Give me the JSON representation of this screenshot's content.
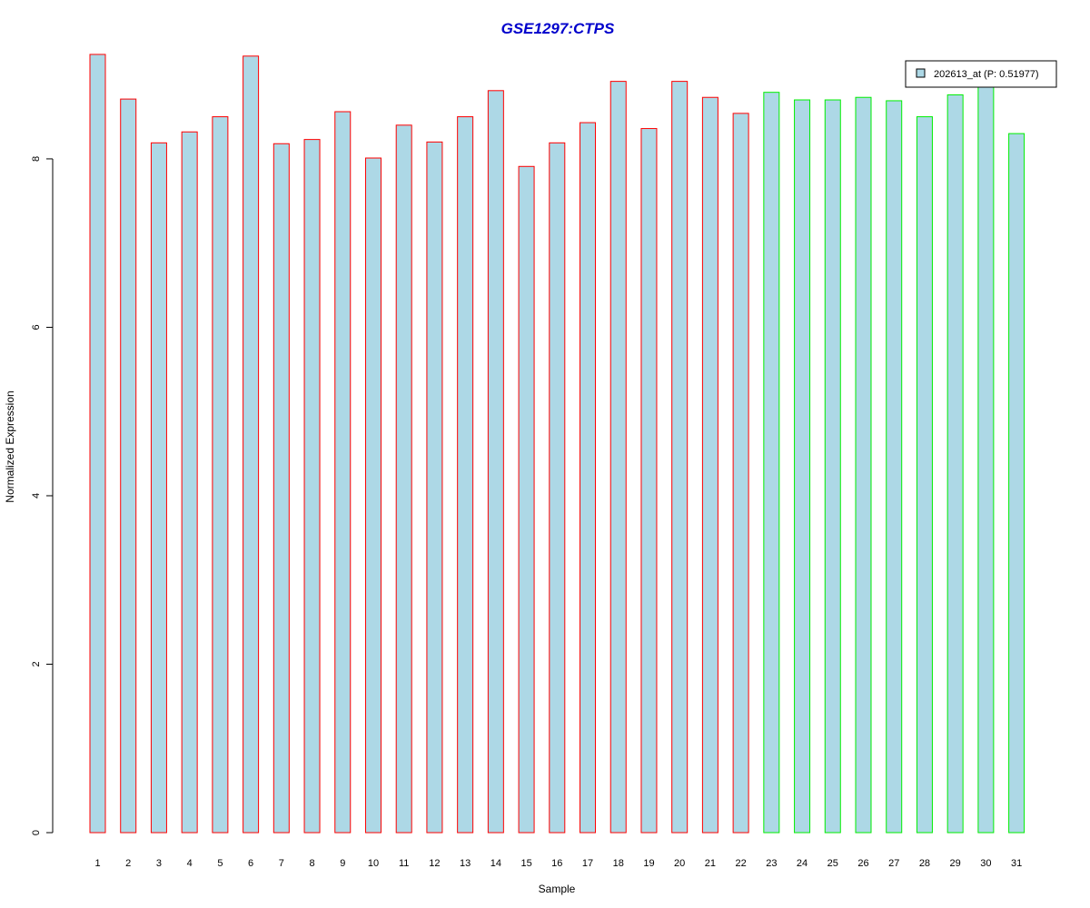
{
  "colors": {
    "title": "#0000cc",
    "bar_fill": "#add8e6",
    "group1_border": "#ff0000",
    "group2_border": "#00ee00",
    "axis": "#000000",
    "background": "#ffffff"
  },
  "chart_data": {
    "type": "bar",
    "title": "GSE1297:CTPS",
    "xlabel": "Sample",
    "ylabel": "Normalized Expression",
    "ylim": [
      0,
      9.25
    ],
    "yticks": [
      0,
      2,
      4,
      6,
      8
    ],
    "grid": false,
    "legend_position": "top-right",
    "categories": [
      "1",
      "2",
      "3",
      "4",
      "5",
      "6",
      "7",
      "8",
      "9",
      "10",
      "11",
      "12",
      "13",
      "14",
      "15",
      "16",
      "17",
      "18",
      "19",
      "20",
      "21",
      "22",
      "23",
      "24",
      "25",
      "26",
      "27",
      "28",
      "29",
      "30",
      "31"
    ],
    "series": [
      {
        "name": "202613_at (P: 0.51977)",
        "values": [
          9.24,
          8.71,
          8.19,
          8.32,
          8.5,
          9.22,
          8.18,
          8.23,
          8.56,
          8.01,
          8.4,
          8.2,
          8.5,
          8.81,
          7.91,
          8.19,
          8.43,
          8.92,
          8.36,
          8.92,
          8.73,
          8.54,
          8.79,
          8.7,
          8.7,
          8.73,
          8.69,
          8.5,
          8.76,
          8.89,
          8.3
        ]
      }
    ],
    "groups": [
      {
        "samples": [
          "1",
          "2",
          "3",
          "4",
          "5",
          "6",
          "7",
          "8",
          "9",
          "10",
          "11",
          "12",
          "13",
          "14",
          "15",
          "16",
          "17",
          "18",
          "19",
          "20",
          "21",
          "22"
        ],
        "border_color": "#ff0000"
      },
      {
        "samples": [
          "23",
          "24",
          "25",
          "26",
          "27",
          "28",
          "29",
          "30",
          "31"
        ],
        "border_color": "#00ee00"
      }
    ]
  }
}
